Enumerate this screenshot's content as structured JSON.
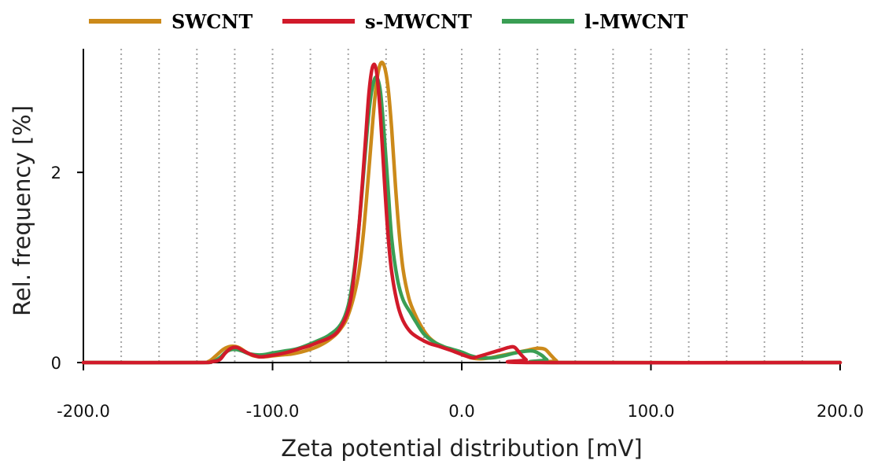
{
  "chart_data": {
    "type": "line",
    "xlabel": "Zeta potential distribution [mV]",
    "ylabel": "Rel. frequency [%]",
    "xlim": [
      -200,
      200
    ],
    "ylim": [
      0,
      3.3
    ],
    "x_tick_labels": [
      {
        "value": -200,
        "label": "-200.0"
      },
      {
        "value": -100,
        "label": "-100.0"
      },
      {
        "value": 0,
        "label": "0.0"
      },
      {
        "value": 100,
        "label": "100.0"
      },
      {
        "value": 200,
        "label": "200.0"
      }
    ],
    "y_tick_labels": [
      {
        "value": 0,
        "label": "0"
      },
      {
        "value": 2,
        "label": "2"
      }
    ],
    "vertical_grid": {
      "style": "dotted",
      "step": 20,
      "from": -180,
      "to": 180
    },
    "legend_position": "top",
    "series": [
      {
        "name": "SWCNT",
        "color": "#cc8a1a",
        "points": [
          [
            -200,
            0
          ],
          [
            -140,
            0
          ],
          [
            -134,
            0.01
          ],
          [
            -130,
            0.07
          ],
          [
            -126,
            0.14
          ],
          [
            -122,
            0.17
          ],
          [
            -118,
            0.16
          ],
          [
            -114,
            0.11
          ],
          [
            -110,
            0.07
          ],
          [
            -105,
            0.06
          ],
          [
            -100,
            0.07
          ],
          [
            -95,
            0.08
          ],
          [
            -90,
            0.09
          ],
          [
            -85,
            0.11
          ],
          [
            -80,
            0.14
          ],
          [
            -75,
            0.18
          ],
          [
            -70,
            0.24
          ],
          [
            -65,
            0.33
          ],
          [
            -60,
            0.5
          ],
          [
            -55,
            0.88
          ],
          [
            -52,
            1.35
          ],
          [
            -49,
            2.05
          ],
          [
            -47,
            2.55
          ],
          [
            -45,
            2.95
          ],
          [
            -43,
            3.14
          ],
          [
            -41,
            3.12
          ],
          [
            -39,
            2.9
          ],
          [
            -37,
            2.45
          ],
          [
            -35,
            1.85
          ],
          [
            -33,
            1.35
          ],
          [
            -31,
            0.98
          ],
          [
            -28,
            0.68
          ],
          [
            -25,
            0.52
          ],
          [
            -22,
            0.4
          ],
          [
            -18,
            0.28
          ],
          [
            -14,
            0.21
          ],
          [
            -10,
            0.17
          ],
          [
            -5,
            0.13
          ],
          [
            0,
            0.09
          ],
          [
            5,
            0.05
          ],
          [
            10,
            0.04
          ],
          [
            15,
            0.05
          ],
          [
            20,
            0.07
          ],
          [
            25,
            0.09
          ],
          [
            30,
            0.11
          ],
          [
            35,
            0.13
          ],
          [
            40,
            0.15
          ],
          [
            44,
            0.14
          ],
          [
            47,
            0.08
          ],
          [
            50,
            0.02
          ],
          [
            53,
            0
          ],
          [
            200,
            0
          ]
        ]
      },
      {
        "name": "s-MWCNT",
        "color": "#d11a2a",
        "points": [
          [
            -200,
            0
          ],
          [
            -140,
            0
          ],
          [
            -132,
            0.01
          ],
          [
            -128,
            0.03
          ],
          [
            -125,
            0.1
          ],
          [
            -122,
            0.15
          ],
          [
            -119,
            0.16
          ],
          [
            -116,
            0.13
          ],
          [
            -112,
            0.09
          ],
          [
            -107,
            0.06
          ],
          [
            -102,
            0.07
          ],
          [
            -96,
            0.09
          ],
          [
            -90,
            0.12
          ],
          [
            -85,
            0.15
          ],
          [
            -80,
            0.18
          ],
          [
            -75,
            0.22
          ],
          [
            -70,
            0.26
          ],
          [
            -65,
            0.34
          ],
          [
            -60,
            0.55
          ],
          [
            -57,
            0.9
          ],
          [
            -54,
            1.5
          ],
          [
            -51,
            2.3
          ],
          [
            -49,
            2.85
          ],
          [
            -47,
            3.12
          ],
          [
            -45,
            3.05
          ],
          [
            -43,
            2.6
          ],
          [
            -41,
            1.95
          ],
          [
            -39,
            1.35
          ],
          [
            -37,
            0.95
          ],
          [
            -34,
            0.62
          ],
          [
            -31,
            0.44
          ],
          [
            -27,
            0.32
          ],
          [
            -22,
            0.25
          ],
          [
            -17,
            0.2
          ],
          [
            -12,
            0.17
          ],
          [
            -6,
            0.13
          ],
          [
            -2,
            0.1
          ],
          [
            2,
            0.07
          ],
          [
            6,
            0.05
          ],
          [
            10,
            0.07
          ],
          [
            15,
            0.1
          ],
          [
            20,
            0.13
          ],
          [
            25,
            0.16
          ],
          [
            28,
            0.16
          ],
          [
            31,
            0.09
          ],
          [
            34,
            0.03
          ],
          [
            37,
            0
          ],
          [
            200,
            0
          ]
        ]
      },
      {
        "name": "l-MWCNT",
        "color": "#3a9e54",
        "points": [
          [
            -200,
            0
          ],
          [
            -140,
            0
          ],
          [
            -132,
            0.01
          ],
          [
            -128,
            0.05
          ],
          [
            -124,
            0.12
          ],
          [
            -120,
            0.14
          ],
          [
            -116,
            0.12
          ],
          [
            -112,
            0.09
          ],
          [
            -106,
            0.08
          ],
          [
            -100,
            0.1
          ],
          [
            -94,
            0.12
          ],
          [
            -88,
            0.14
          ],
          [
            -82,
            0.18
          ],
          [
            -76,
            0.23
          ],
          [
            -70,
            0.29
          ],
          [
            -64,
            0.4
          ],
          [
            -60,
            0.6
          ],
          [
            -57,
            0.95
          ],
          [
            -54,
            1.5
          ],
          [
            -51,
            2.2
          ],
          [
            -49,
            2.65
          ],
          [
            -47,
            2.92
          ],
          [
            -45,
            3.0
          ],
          [
            -43,
            2.85
          ],
          [
            -41,
            2.4
          ],
          [
            -39,
            1.85
          ],
          [
            -37,
            1.3
          ],
          [
            -34,
            0.88
          ],
          [
            -31,
            0.66
          ],
          [
            -27,
            0.52
          ],
          [
            -24,
            0.42
          ],
          [
            -20,
            0.3
          ],
          [
            -15,
            0.22
          ],
          [
            -10,
            0.17
          ],
          [
            -5,
            0.14
          ],
          [
            0,
            0.11
          ],
          [
            5,
            0.07
          ],
          [
            10,
            0.05
          ],
          [
            16,
            0.05
          ],
          [
            22,
            0.07
          ],
          [
            28,
            0.1
          ],
          [
            34,
            0.12
          ],
          [
            38,
            0.12
          ],
          [
            42,
            0.08
          ],
          [
            45,
            0.03
          ],
          [
            48,
            0
          ],
          [
            200,
            0
          ]
        ]
      }
    ]
  }
}
